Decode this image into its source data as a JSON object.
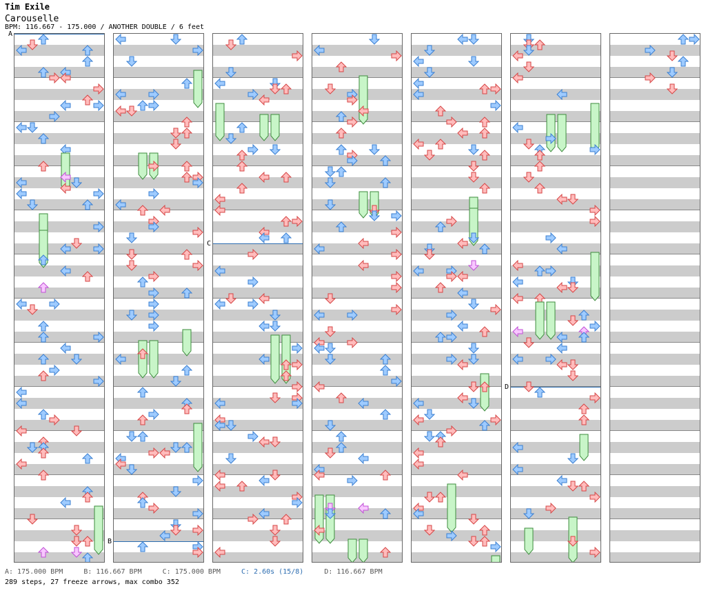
{
  "header": {
    "artist": "Tim Exile",
    "title": "Carouselle",
    "bpm_line": "BPM: 116.667 - 175.000 / ANOTHER DOUBLE / 6 feet"
  },
  "markers": [
    {
      "label": "A",
      "column": 0,
      "measure": 0
    },
    {
      "label": "B",
      "column": 1,
      "measure": 11.5
    },
    {
      "label": "C",
      "column": 2,
      "measure": 4.75
    },
    {
      "label": "D",
      "column": 5,
      "measure": 8
    }
  ],
  "footer": {
    "legend_a": "A: 175.000 BPM",
    "legend_b": "B: 116.667 BPM",
    "legend_c": "C: 175.000 BPM",
    "stop": "C: 2.60s (15/8)",
    "legend_d": "D: 116.667 BPM",
    "stats": "289 steps, 27 freeze arrows, max combo 352"
  },
  "chart": {
    "columns": 7,
    "measures_per_column": 12,
    "colors": {
      "red": "#ffbcbc",
      "red_stroke": "#d64545",
      "blue": "#9ecbff",
      "blue_stroke": "#3a7fd1",
      "pink": "#f8c7ff",
      "pink_stroke": "#c04fd6",
      "freeze": "#c8f5c8",
      "freeze_stroke": "#3d8b3d"
    }
  }
}
